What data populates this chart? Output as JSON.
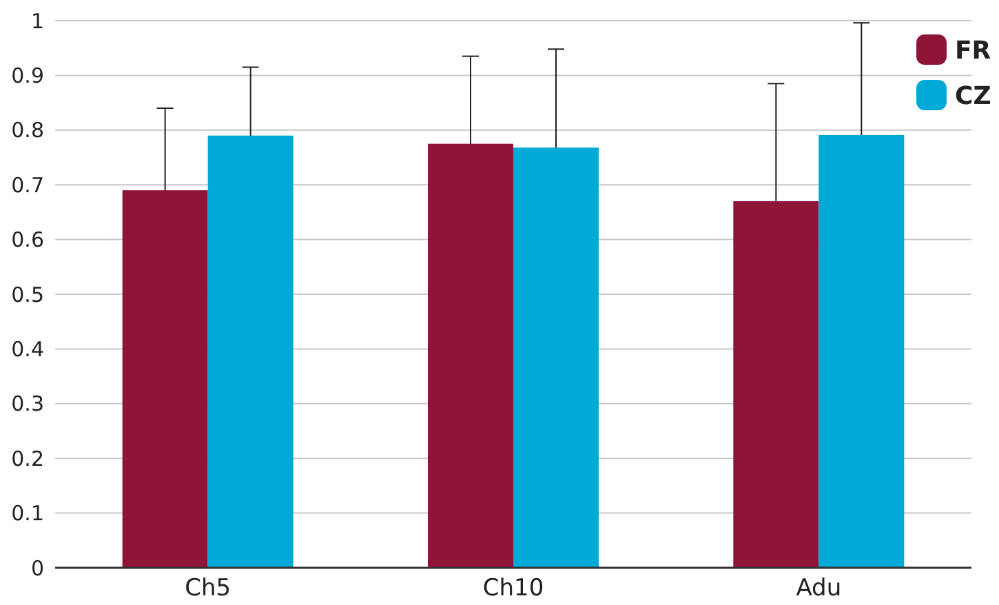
{
  "chart_data": {
    "type": "bar",
    "categories": [
      "Ch5",
      "Ch10",
      "Adu"
    ],
    "series": [
      {
        "name": "FR",
        "color": "#8e1538",
        "values": [
          0.69,
          0.775,
          0.67
        ],
        "errors": [
          0.15,
          0.16,
          0.215
        ]
      },
      {
        "name": "CZ",
        "color": "#00a9d6",
        "values": [
          0.79,
          0.768,
          0.791
        ],
        "errors": [
          0.125,
          0.18,
          0.205
        ]
      }
    ],
    "ylim": [
      0,
      1
    ],
    "yticks": [
      0,
      0.1,
      0.2,
      0.3,
      0.4,
      0.5,
      0.6,
      0.7,
      0.8,
      0.9,
      1
    ],
    "grid": "y",
    "legend": "top right"
  }
}
